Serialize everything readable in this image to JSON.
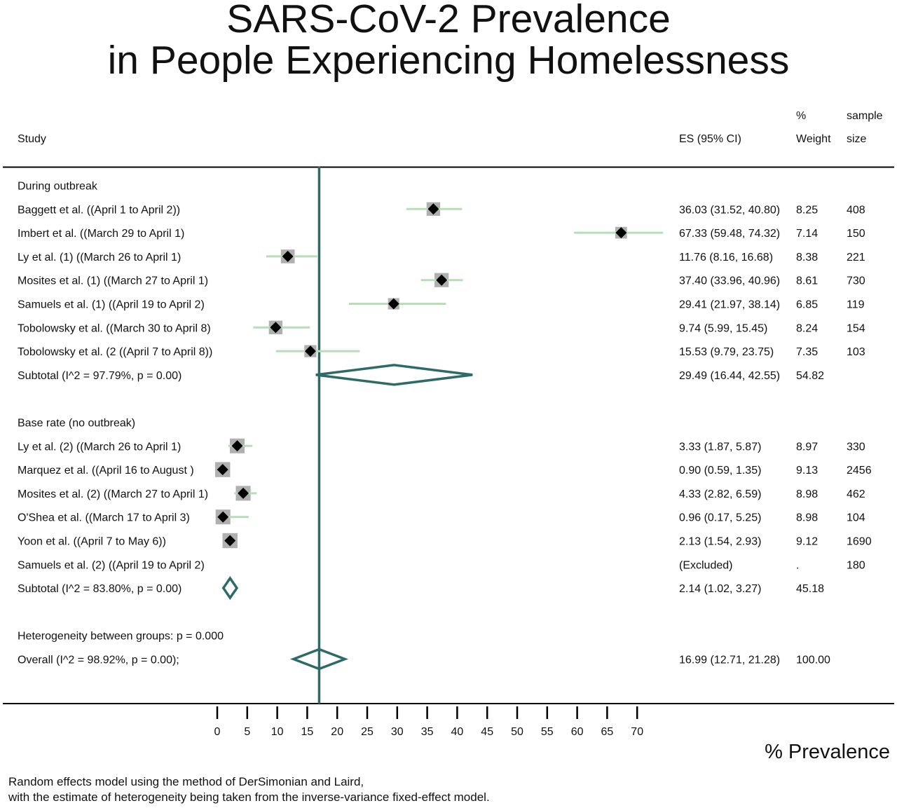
{
  "chart_data": {
    "type": "forest",
    "title_line1": "SARS-CoV-2 Prevalence",
    "title_line2": "in People Experiencing Homelessness",
    "columns": {
      "study": "Study",
      "es": "ES (95% CI)",
      "weight_top": "%",
      "weight_bottom": "Weight",
      "sample_top": "sample",
      "sample_bottom": "size"
    },
    "xlabel": "% Prevalence",
    "x_ticks": [
      0,
      5,
      10,
      15,
      20,
      25,
      30,
      35,
      40,
      45,
      50,
      55,
      60,
      65,
      70
    ],
    "xlim": [
      0,
      70
    ],
    "reference_line": 16.99,
    "groups": [
      {
        "label": "During outbreak",
        "studies": [
          {
            "name": "Baggett et al. ((April 1 to April 2))",
            "es": 36.03,
            "lo": 31.52,
            "hi": 40.8,
            "es_text": "36.03 (31.52, 40.80)",
            "weight": "8.25",
            "sample": "408"
          },
          {
            "name": "Imbert et al. ((March 29 to April 1)",
            "es": 67.33,
            "lo": 59.48,
            "hi": 74.32,
            "es_text": "67.33 (59.48, 74.32)",
            "weight": "7.14",
            "sample": "150"
          },
          {
            "name": "Ly et al. (1) ((March 26 to April 1)",
            "es": 11.76,
            "lo": 8.16,
            "hi": 16.68,
            "es_text": "11.76 (8.16, 16.68)",
            "weight": "8.38",
            "sample": "221"
          },
          {
            "name": "Mosites et al. (1) ((March 27 to April 1)",
            "es": 37.4,
            "lo": 33.96,
            "hi": 40.96,
            "es_text": "37.40 (33.96, 40.96)",
            "weight": "8.61",
            "sample": "730"
          },
          {
            "name": "Samuels et al. (1) ((April 19 to April 2)",
            "es": 29.41,
            "lo": 21.97,
            "hi": 38.14,
            "es_text": "29.41 (21.97, 38.14)",
            "weight": "6.85",
            "sample": "119"
          },
          {
            "name": "Tobolowsky et al. ((March 30 to April 8)",
            "es": 9.74,
            "lo": 5.99,
            "hi": 15.45,
            "es_text": "9.74 (5.99, 15.45)",
            "weight": "8.24",
            "sample": "154"
          },
          {
            "name": "Tobolowsky et al. (2 ((April 7 to April 8))",
            "es": 15.53,
            "lo": 9.79,
            "hi": 23.75,
            "es_text": "15.53 (9.79, 23.75)",
            "weight": "7.35",
            "sample": "103"
          }
        ],
        "subtotal": {
          "label": "Subtotal  (I^2 = 97.79%, p = 0.00)",
          "es": 29.49,
          "lo": 16.44,
          "hi": 42.55,
          "es_text": "29.49 (16.44, 42.55)",
          "weight": "54.82"
        }
      },
      {
        "label": "Base rate (no outbreak)",
        "studies": [
          {
            "name": "Ly et al. (2) ((March 26 to April 1)",
            "es": 3.33,
            "lo": 1.87,
            "hi": 5.87,
            "es_text": "3.33 (1.87, 5.87)",
            "weight": "8.97",
            "sample": "330"
          },
          {
            "name": "Marquez et al. ((April 16 to August )",
            "es": 0.9,
            "lo": 0.59,
            "hi": 1.35,
            "es_text": "0.90 (0.59, 1.35)",
            "weight": "9.13",
            "sample": "2456"
          },
          {
            "name": "Mosites et al. (2) ((March 27 to April 1)",
            "es": 4.33,
            "lo": 2.82,
            "hi": 6.59,
            "es_text": "4.33 (2.82, 6.59)",
            "weight": "8.98",
            "sample": "462"
          },
          {
            "name": "O'Shea et al. ((March 17 to April 3)",
            "es": 0.96,
            "lo": 0.17,
            "hi": 5.25,
            "es_text": "0.96 (0.17, 5.25)",
            "weight": "8.98",
            "sample": "104"
          },
          {
            "name": "Yoon et al. ((April 7 to May 6))",
            "es": 2.13,
            "lo": 1.54,
            "hi": 2.93,
            "es_text": "2.13 (1.54, 2.93)",
            "weight": "9.12",
            "sample": "1690"
          },
          {
            "name": "Samuels et al. (2) ((April 19 to April 2)",
            "es": null,
            "lo": null,
            "hi": null,
            "es_text": "(Excluded)",
            "weight": ".",
            "sample": "180"
          }
        ],
        "subtotal": {
          "label": "Subtotal  (I^2 = 83.80%, p = 0.00)",
          "es": 2.14,
          "lo": 1.02,
          "hi": 3.27,
          "es_text": "2.14 (1.02, 3.27)",
          "weight": "45.18"
        }
      }
    ],
    "heterogeneity": "Heterogeneity between groups: p = 0.000",
    "overall": {
      "label": "Overall  (I^2 = 98.92%, p = 0.00);",
      "es": 16.99,
      "lo": 12.71,
      "hi": 21.28,
      "es_text": "16.99 (12.71, 21.28)",
      "weight": "100.00"
    },
    "note_line1": "Random effects model using the method of DerSimonian and Laird,",
    "note_line2": "with the estimate of heterogeneity being taken from the inverse-variance fixed-effect model.",
    "colors": {
      "ci_line": "#b9dcb9",
      "weight_box": "#b0b0b0",
      "point": "#000000",
      "diamond": "#2e6b66",
      "reference": "#2e6b66",
      "rule": "#000000"
    }
  }
}
